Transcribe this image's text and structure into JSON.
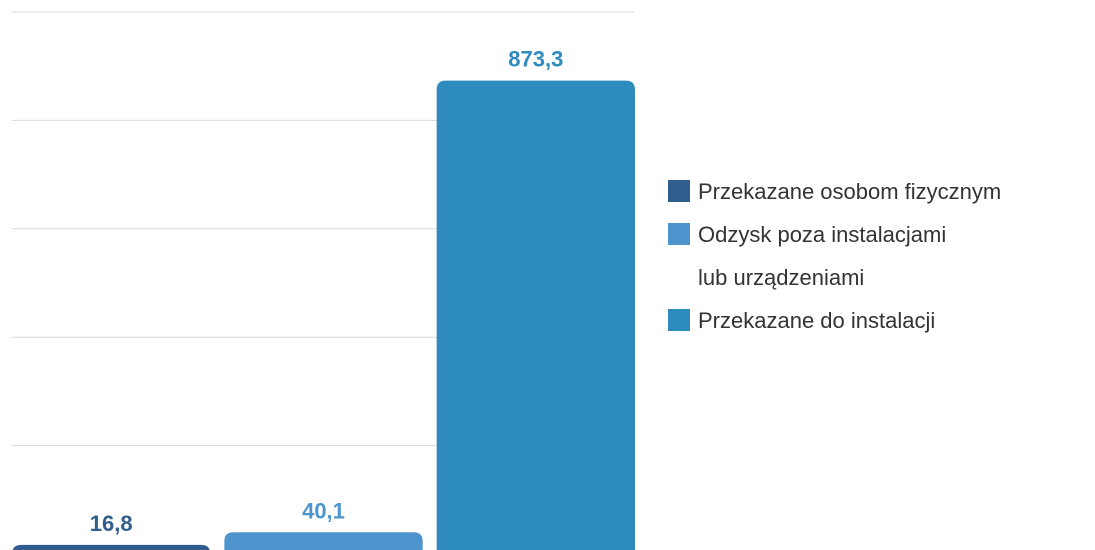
{
  "chart_data": {
    "type": "bar",
    "series": [
      {
        "name": "Przekazane osobom fizycznym",
        "color": "#2f5d8e",
        "values": [
          16.8
        ],
        "value_labels": [
          "16,8"
        ]
      },
      {
        "name": "Odzysk poza instalacjami\nlub urządzeniami",
        "color": "#4d95cc",
        "values": [
          40.1
        ],
        "value_labels": [
          "40,1"
        ]
      },
      {
        "name": "Przekazane do instalacji",
        "color": "#2e8bbd",
        "values": [
          873.3
        ],
        "value_labels": [
          "873,3"
        ]
      }
    ],
    "ylim": [
      0,
      1000
    ],
    "yticks": [
      0,
      200,
      400,
      600,
      800,
      1000
    ],
    "grid": true
  }
}
